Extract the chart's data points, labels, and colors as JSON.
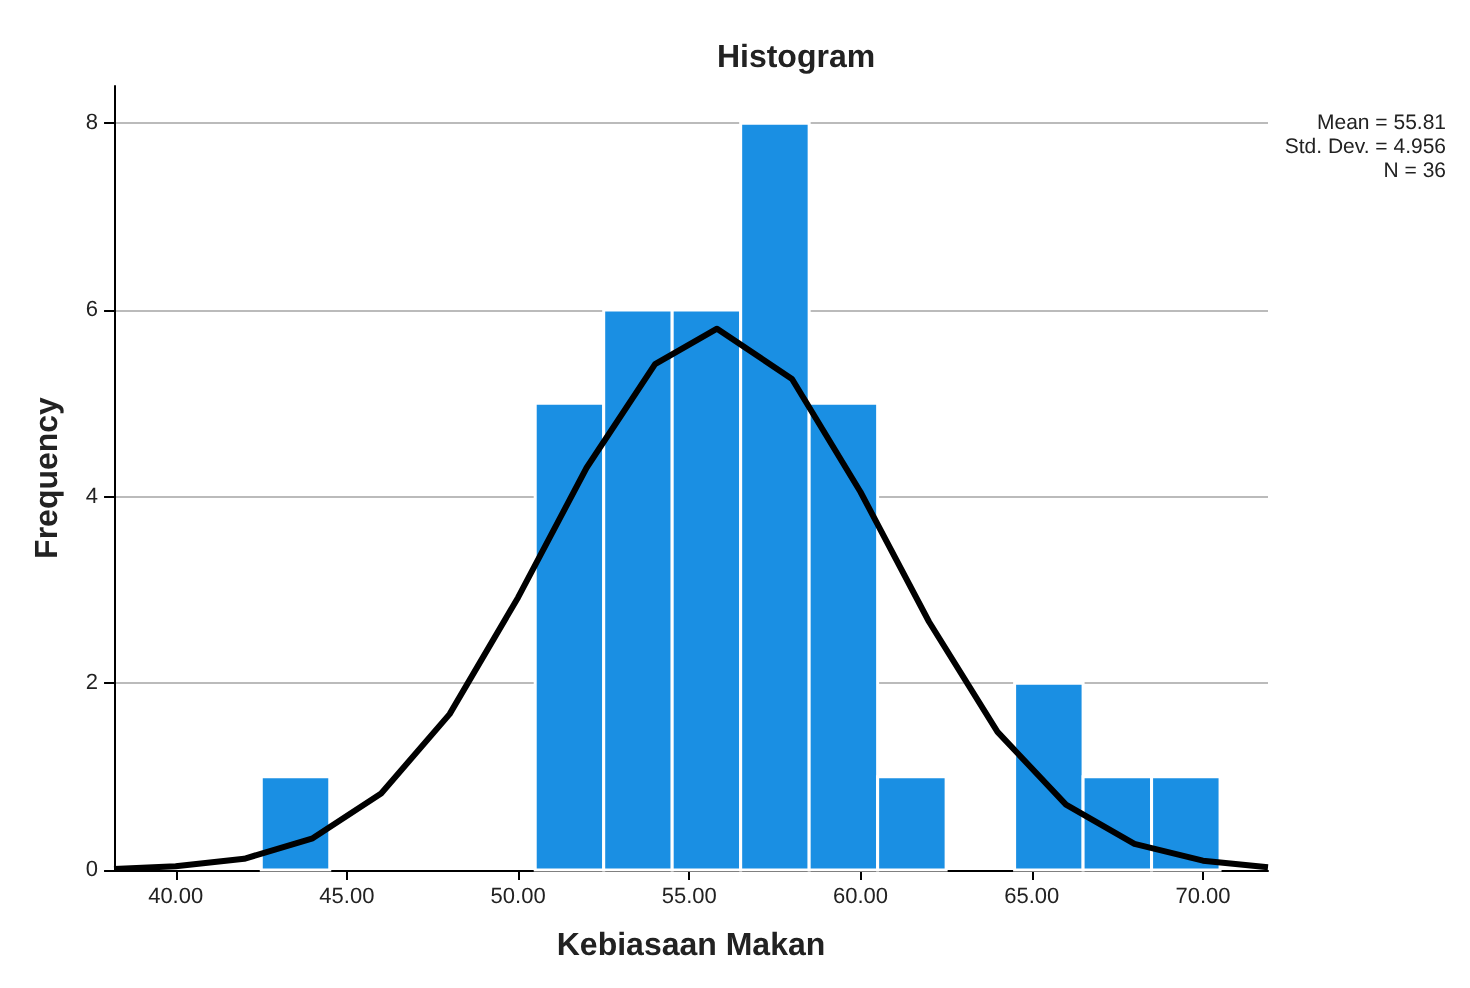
{
  "chart_data": {
    "type": "histogram",
    "title": "Histogram",
    "xlabel": "Kebiasaan Makan",
    "ylabel": "Frequency",
    "bins": [
      42.5,
      44.5,
      46.5,
      48.5,
      50.5,
      52.5,
      54.5,
      56.5,
      58.5,
      60.5,
      62.5,
      64.5,
      66.5,
      68.5,
      70.5
    ],
    "values": [
      1,
      0,
      0,
      0,
      5,
      6,
      6,
      8,
      5,
      1,
      0,
      2,
      1,
      1
    ],
    "color": "#1a8fe3",
    "series": [
      {
        "type": "line",
        "color": "#000000",
        "x": [
          38.2,
          40,
          42,
          44,
          46,
          48,
          50,
          52,
          54,
          55.81,
          58,
          60,
          62,
          64,
          66,
          68,
          70,
          71.9
        ],
        "values": [
          0.01,
          0.04,
          0.12,
          0.34,
          0.82,
          1.67,
          2.92,
          4.31,
          5.42,
          5.8,
          5.26,
          4.05,
          2.66,
          1.48,
          0.7,
          0.28,
          0.1,
          0.03
        ]
      }
    ],
    "xlim": [
      38.2,
      71.9
    ],
    "xticks": [
      {
        "value": 40,
        "label": "40.00"
      },
      {
        "value": 45,
        "label": "45.00"
      },
      {
        "value": 50,
        "label": "50.00"
      },
      {
        "value": 55,
        "label": "55.00"
      },
      {
        "value": 60,
        "label": "60.00"
      },
      {
        "value": 65,
        "label": "65.00"
      },
      {
        "value": 70,
        "label": "70.00"
      }
    ],
    "ylim": [
      0,
      8.4
    ],
    "yticks": [
      0,
      2,
      4,
      6,
      8
    ],
    "grid": "y",
    "marker": "none",
    "line_style": "solid",
    "annotations": [
      "Mean = 55.81",
      "Std. Dev. = 4.956",
      "N = 36"
    ]
  }
}
